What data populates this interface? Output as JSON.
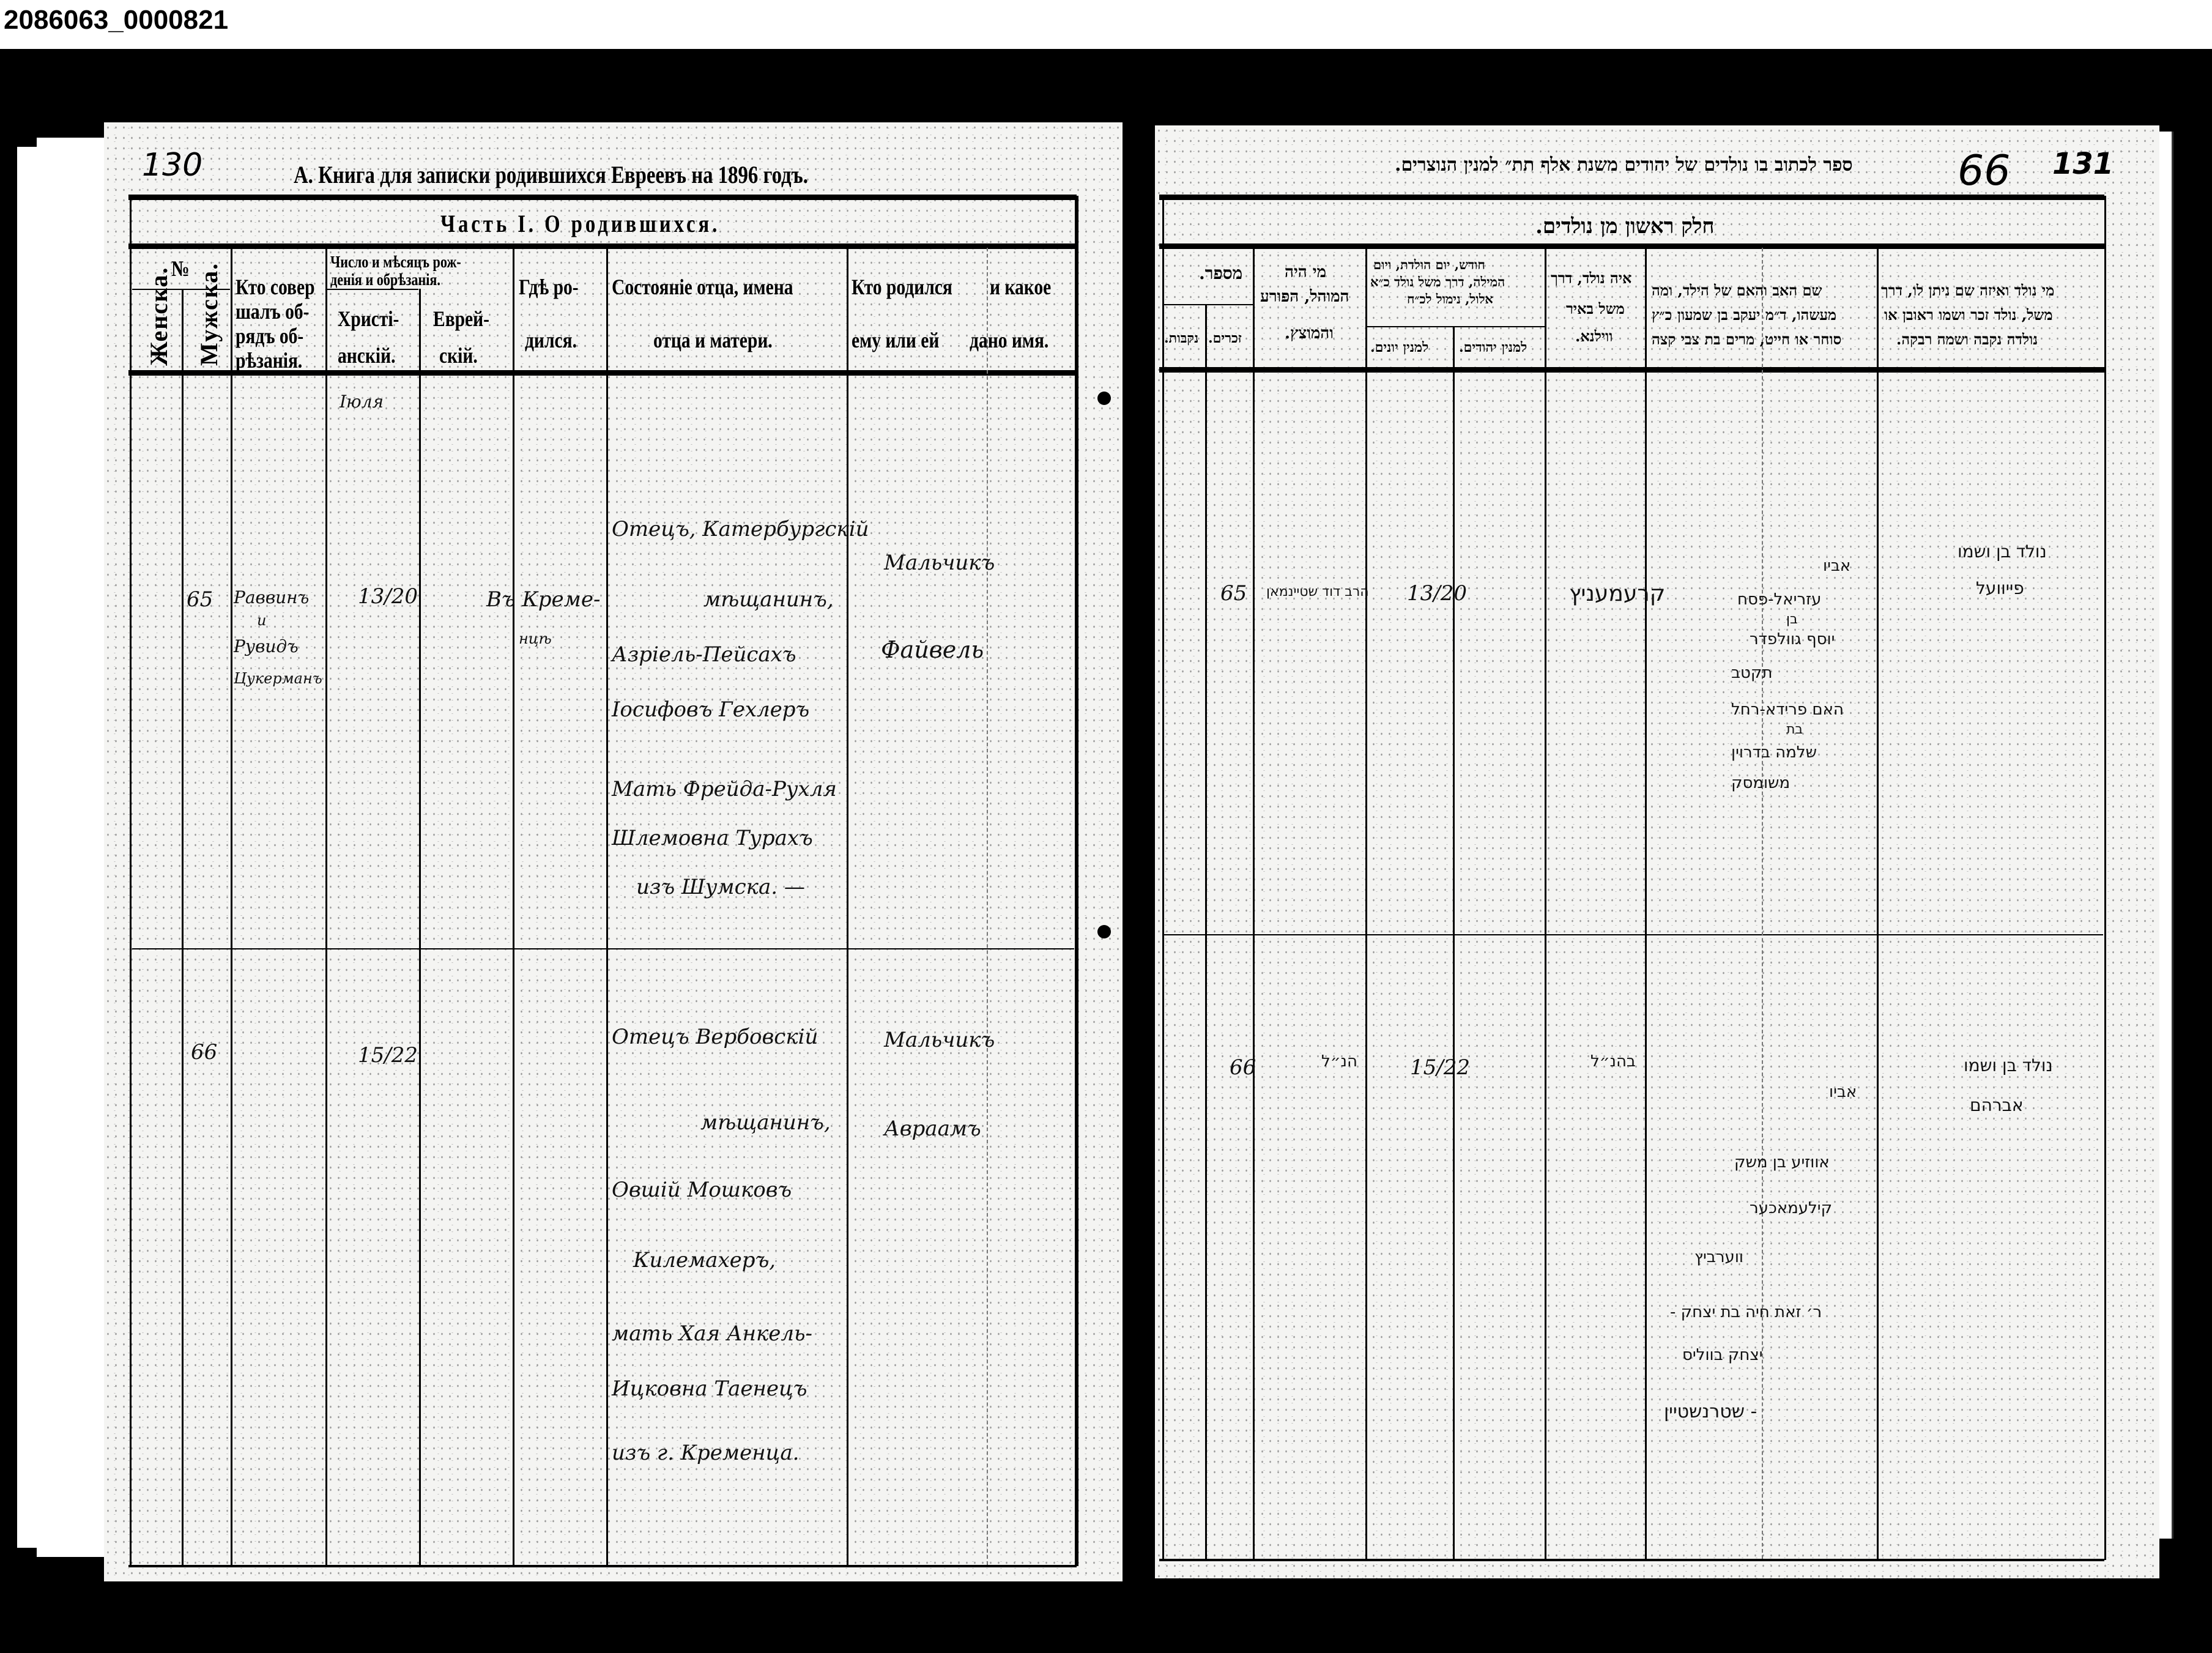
{
  "image_id": "2086063_0000821",
  "left_page": {
    "page_number": "130",
    "title": "А. Книга для записки родившихся Евреевъ на 1896 годъ.",
    "part_title": "Часть I. О родившихся.",
    "headers": {
      "number": "№",
      "female": "Женска.",
      "male": "Мужска.",
      "performed_by": [
        "Кто совер",
        "шалъ об-",
        "рядъ об-",
        "рѣзанія."
      ],
      "date_group": [
        "Число и мѣсяцъ рож-",
        "денія и обрѣзанія."
      ],
      "christian": [
        "Христі-",
        "анскій."
      ],
      "jewish": [
        "Еврей-",
        "скій."
      ],
      "place": [
        "Гдѣ ро-",
        "дился."
      ],
      "parents": [
        "Состояніе отца, имена",
        "отца и матери."
      ],
      "who_born": [
        "Кто родился",
        "ему или ей"
      ],
      "name_given": [
        "и какое",
        "дано имя."
      ]
    },
    "entries": [
      {
        "number": "65",
        "performed_by": [
          "Раввинъ",
          "и",
          "Рувидъ",
          "Цукерманъ"
        ],
        "month": "Іюля",
        "date": "13/20",
        "place": [
          "Въ Креме-",
          "нцѣ"
        ],
        "parents": [
          "Отецъ, Катербургскій",
          "мѣщанинъ,",
          "Азріель-Пейсахъ",
          "Іосифовъ Гехлеръ",
          "Мать Фрейда-Рухля",
          "Шлемовна Турахъ",
          "изъ Шумска. —"
        ],
        "child": [
          "Мальчикъ",
          "Файвель"
        ]
      },
      {
        "number": "66",
        "date": "15/22",
        "parents": [
          "Отецъ Вербовскій",
          "мѣщанинъ,",
          "Овшій Мошковъ",
          "Килемахеръ,",
          "мать Хая Анкель-",
          "Ицковна Таенецъ",
          "изъ г. Кременца."
        ],
        "child": [
          "Мальчикъ",
          "Авраамъ"
        ]
      }
    ]
  },
  "right_page": {
    "page_number_a": "66",
    "page_number_b": "131",
    "title": "ספר לכתוב בו נולדים של יהודים משנת אלף תת״ למנין הנוצרים.",
    "part_title": "חלק ראשון מן נולדים.",
    "headers": {
      "number": "מספר.",
      "female": "נקבות.",
      "male": "זכרים.",
      "mohel": [
        "מי היה",
        "המוהל, הפורע",
        "והמוצץ."
      ],
      "date_group": [
        "חודש, יום הולדת, ויום",
        "המילה, דרך משל נולד כ״א",
        "אלול, נימול לכ״ח"
      ],
      "christian": "למנין יונים.",
      "jewish": "למנין יהודים.",
      "place": [
        "איה נולד, דרך",
        "משל באיר",
        "ווילנא."
      ],
      "parents": [
        "שם האב והאם של הילד, ומה",
        "מעשהו, ד״מ יעקב בן שמעון כ״ץ",
        "סוחר או חייט, מרים בת צבי קצה"
      ],
      "child": [
        "מי נולד ואיזה שם ניתן לו, דרך",
        "משל, נולד זכר ושמו ראובן או",
        "נולדה נקבה ושמה רבקה."
      ]
    },
    "entries": [
      {
        "number": "65",
        "mohel": "הרב דוד שטיינמאן",
        "date": "13/20",
        "place": "קרעמעניץ",
        "parents": [
          "אביו",
          "עזריאל-פסח",
          "בן",
          "יוסף גוולפדר",
          "תקטב",
          "האם פרידא-רחל",
          "בת",
          "שלמה בדרוין",
          "משומסק"
        ],
        "child": [
          "נולד בן ושמו",
          "פייוועל"
        ]
      },
      {
        "number": "66",
        "mohel": "הנ״ל",
        "date": "15/22",
        "place": "בהנ״ל",
        "parents": [
          "אביו",
          "אווזיע בן משק",
          "קילעמאכער",
          "ווערביץ",
          "ר׳ זאת חיה בת יצחק -",
          "יצחק בווליס",
          "- שטרנשטיין"
        ],
        "child": [
          "נולד בן ושמו",
          "אברהם"
        ]
      }
    ]
  }
}
